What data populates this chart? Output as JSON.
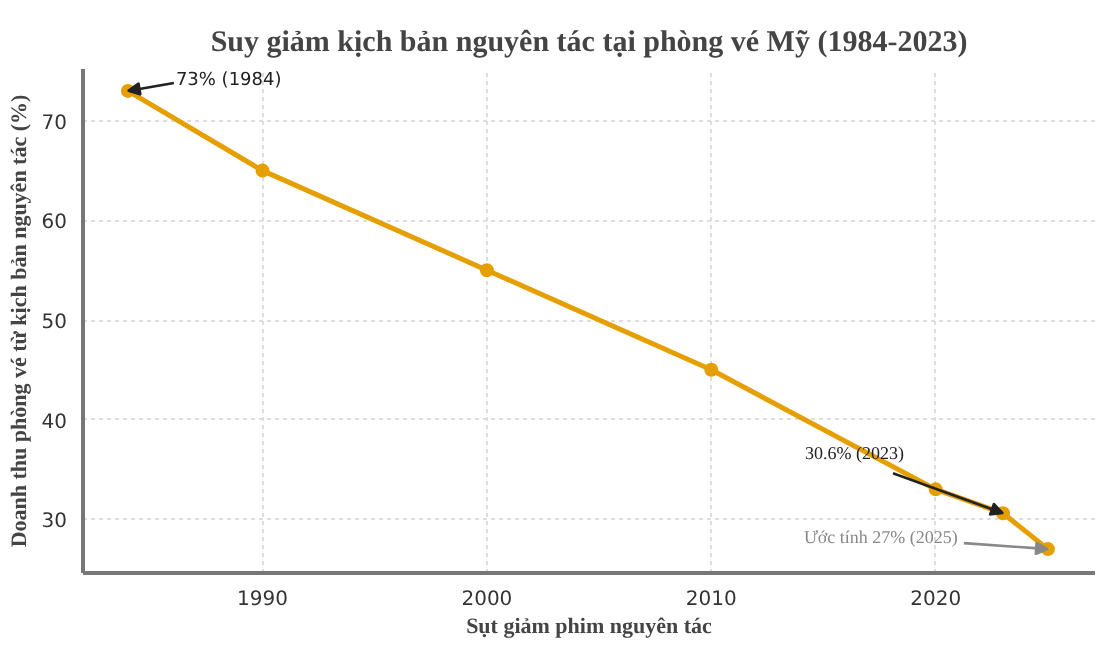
{
  "chart_data": {
    "type": "line",
    "title": "Suy giảm kịch bản nguyên tác tại phòng vé Mỹ (1984-2023)",
    "xlabel": "Sụt giảm phim nguyên tác",
    "ylabel": "Doanh thu phòng vé từ kịch bản nguyên tác (%)",
    "x": [
      1984,
      1990,
      2000,
      2010,
      2020,
      2023,
      2025
    ],
    "series": [
      {
        "color": "#e69f00",
        "values": [
          73,
          65,
          55,
          45,
          33,
          30.6,
          27
        ]
      }
    ],
    "xlim": [
      1982,
      2027.1
    ],
    "ylim": [
      24.6,
      75.2
    ],
    "xticks": [
      1990,
      2000,
      2010,
      2020
    ],
    "yticks": [
      30,
      40,
      50,
      60,
      70
    ],
    "grid": true,
    "marker": "circle",
    "line_style": "solid",
    "annotations": [
      {
        "text": "73% (1984)",
        "x": 1984,
        "y": 73
      },
      {
        "text": "30.6% (2023)",
        "x": 2023,
        "y": 30.6
      },
      {
        "text": "Ước tính 27% (2025)",
        "x": 2025,
        "y": 27
      }
    ]
  }
}
